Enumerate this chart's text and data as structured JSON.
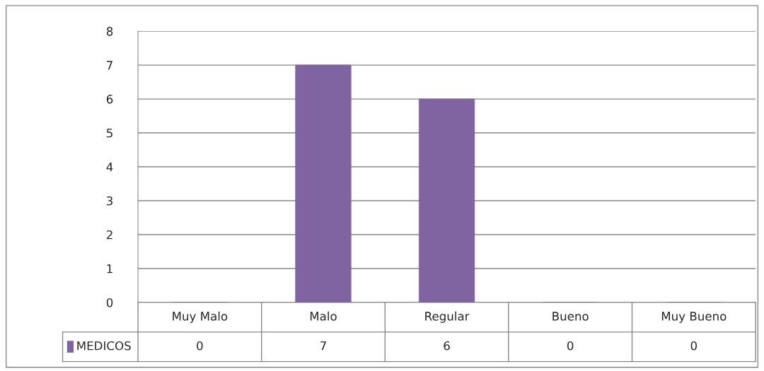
{
  "chart_data": {
    "type": "bar",
    "categories": [
      "Muy Malo",
      "Malo",
      "Regular",
      "Bueno",
      "Muy Bueno"
    ],
    "series": [
      {
        "name": "MEDICOS",
        "color": "#8064a2",
        "values": [
          0,
          7,
          6,
          0,
          0
        ]
      }
    ],
    "ylim": [
      0,
      8
    ],
    "yticks": [
      0,
      1,
      2,
      3,
      4,
      5,
      6,
      7,
      8
    ],
    "grid": "y",
    "data_labels": true
  }
}
